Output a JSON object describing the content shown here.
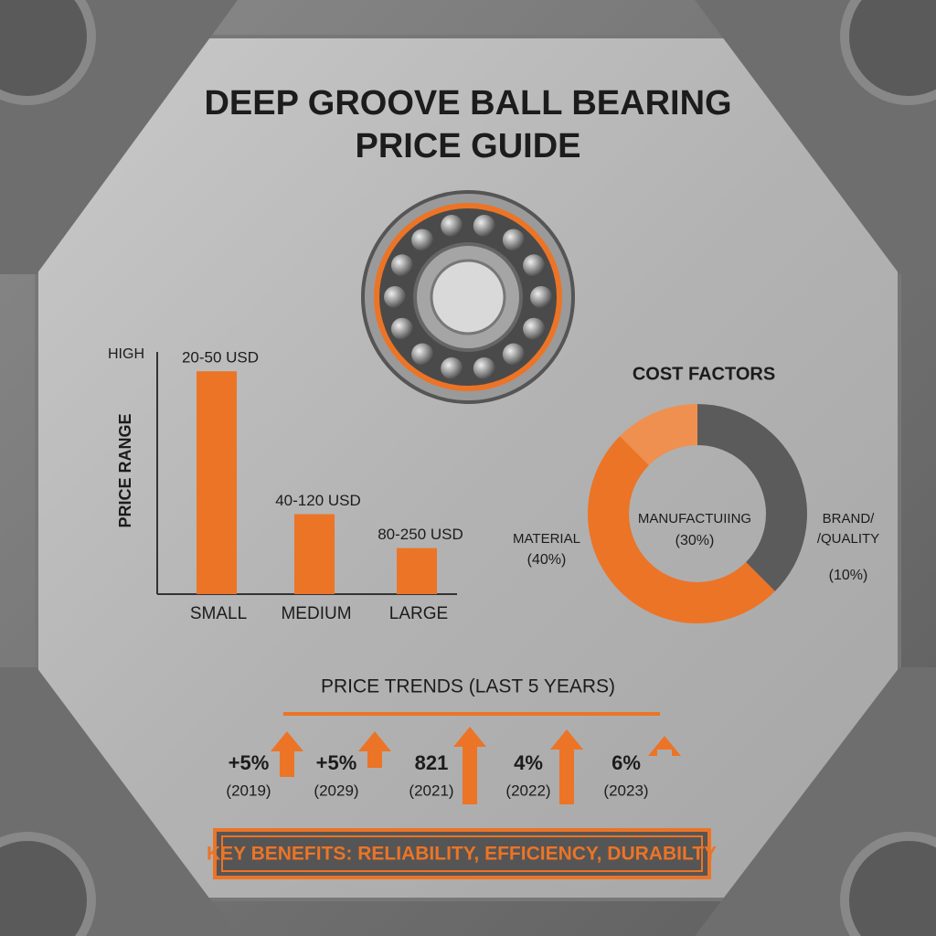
{
  "header": {
    "title_lines": [
      "DEEP GROOVE BALL BEARING",
      "PRICE GUIDE"
    ]
  },
  "chart_data": [
    {
      "type": "bar",
      "y_label": "PRICE RANGE",
      "y_top_label": "HIGH",
      "categories": [
        "SMALL",
        "MEDIUM",
        "LARGE"
      ],
      "values": [
        92,
        33,
        19
      ],
      "ylim": [
        0,
        100
      ],
      "annotations": [
        "20-50 USD",
        "40-120 USD",
        "80-250 USD"
      ],
      "color": "#ec7426"
    },
    {
      "type": "donut",
      "title": "COST FACTORS",
      "segments": [
        {
          "name_lines": [
            "MATERIAL"
          ],
          "value": 40,
          "value_label": "(40%)",
          "color": "#ec7426"
        },
        {
          "name_lines": [
            "MANUFACTUIING"
          ],
          "value": 30,
          "value_label": "(30%)",
          "color": "#5b5b5b"
        },
        {
          "name_lines": [
            "BRAND/",
            "/QUALITY"
          ],
          "value": 10,
          "value_label": "(10%)",
          "color": "#ef9050"
        }
      ]
    }
  ],
  "trends": {
    "title": "PRICE TRENDS (LAST 5 YEARS)",
    "items": [
      {
        "value": "+5%",
        "year": "(2019)"
      },
      {
        "value": "+5%",
        "year": "(2029)"
      },
      {
        "value": "821",
        "year": "(2021)"
      },
      {
        "value": "4%",
        "year": "(2022)"
      },
      {
        "value": "6%",
        "year": "(2023)"
      }
    ]
  },
  "benefits": "KEY BENEFITS: RELIABILITY, EFFICIENCY, DURABILTY"
}
